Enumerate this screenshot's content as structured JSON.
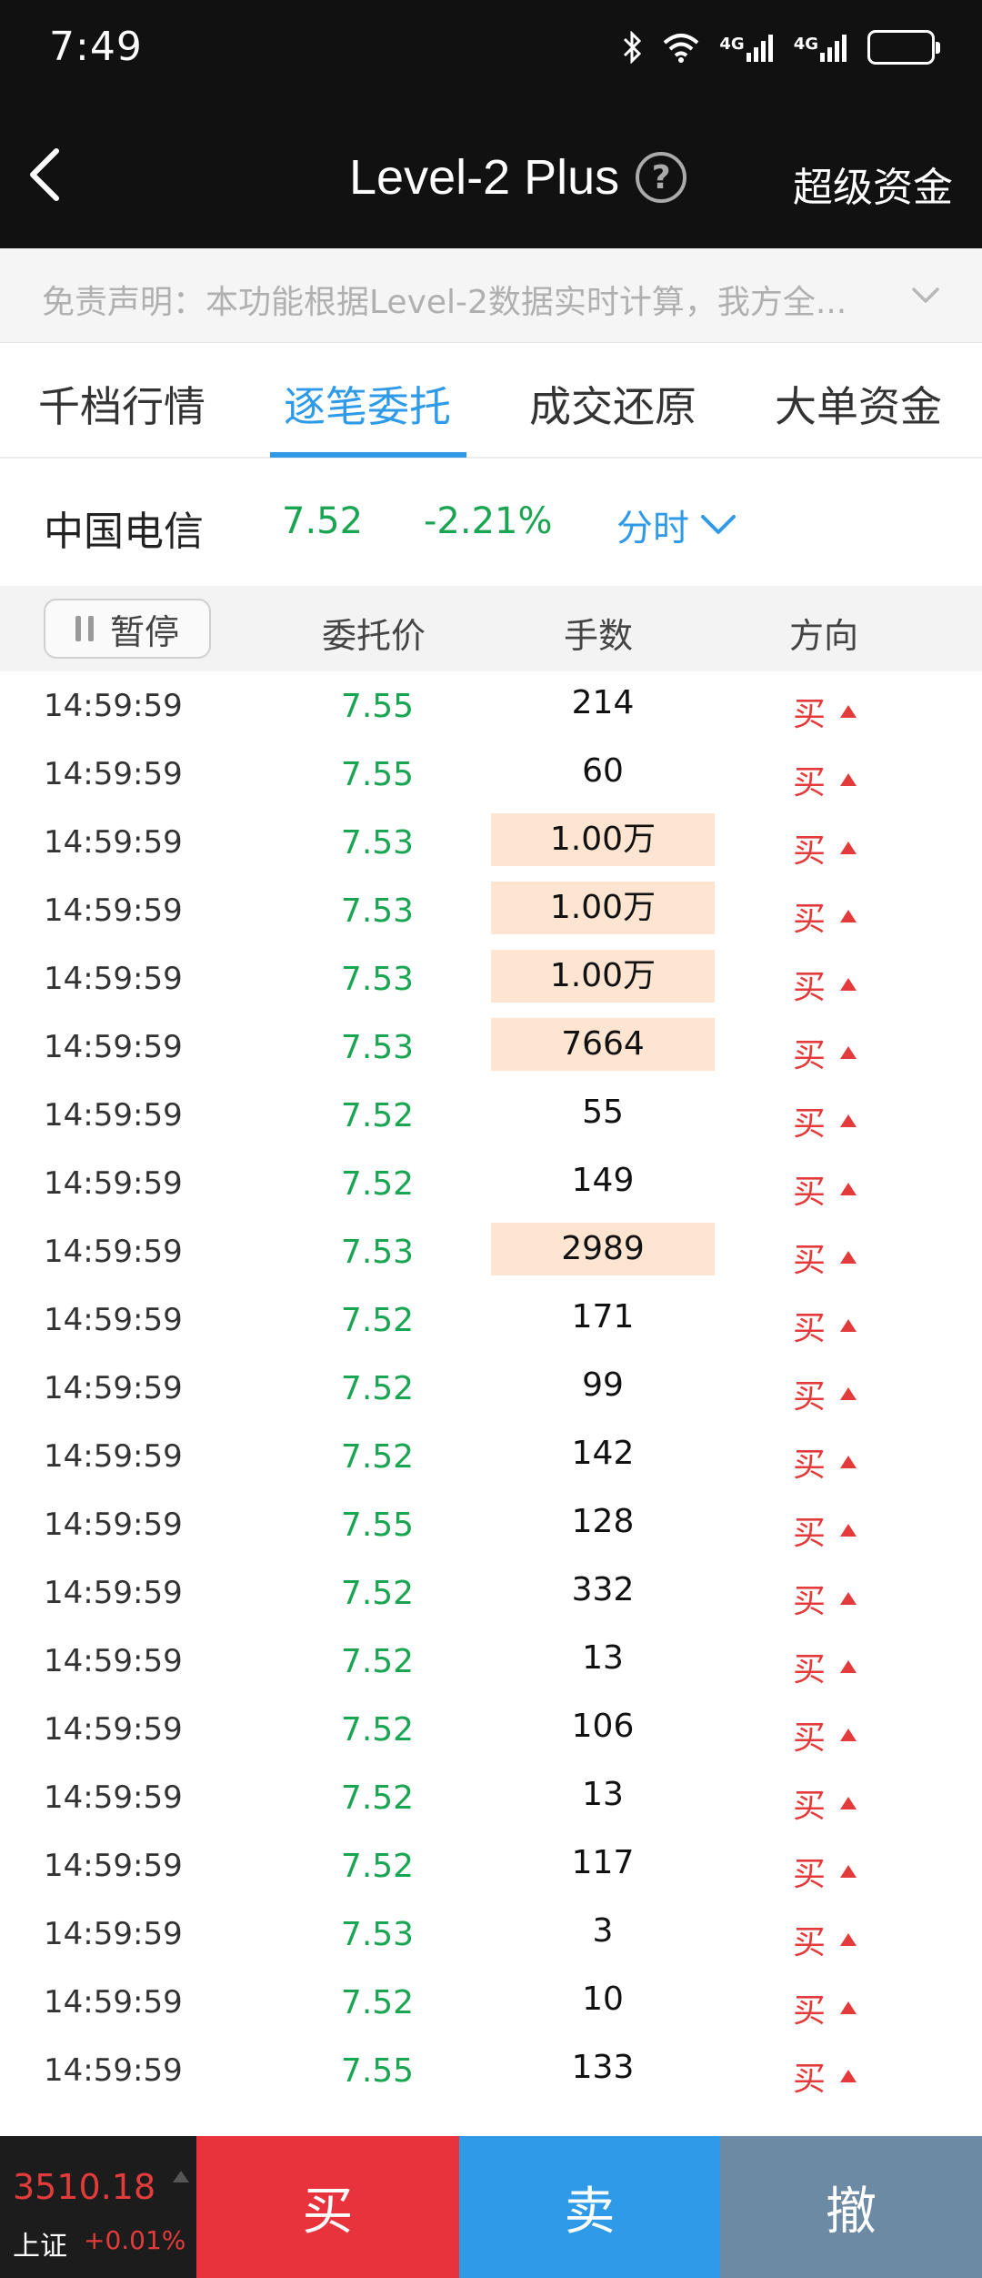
{
  "status_bar": {
    "time": "7:49",
    "sig1": "4G",
    "sig2": "4G"
  },
  "header": {
    "title": "Level-2 Plus",
    "help": "?",
    "right_link": "超级资金"
  },
  "disclaimer": {
    "text": "免责声明：本功能根据Level-2数据实时计算，我方全..."
  },
  "tabs": [
    {
      "label": "千档行情"
    },
    {
      "label": "逐笔委托"
    },
    {
      "label": "成交还原"
    },
    {
      "label": "大单资金"
    }
  ],
  "active_tab": 1,
  "stock": {
    "name": "中国电信",
    "price": "7.52",
    "change": "-2.21%",
    "mode": "分时"
  },
  "columns": {
    "pause": "暂停",
    "price": "委托价",
    "volume": "手数",
    "direction": "方向"
  },
  "rows": [
    {
      "time": "14:59:59",
      "price": "7.55",
      "volume": "214",
      "dir": "买",
      "highlight": false
    },
    {
      "time": "14:59:59",
      "price": "7.55",
      "volume": "60",
      "dir": "买",
      "highlight": false
    },
    {
      "time": "14:59:59",
      "price": "7.53",
      "volume": "1.00万",
      "dir": "买",
      "highlight": true
    },
    {
      "time": "14:59:59",
      "price": "7.53",
      "volume": "1.00万",
      "dir": "买",
      "highlight": true
    },
    {
      "time": "14:59:59",
      "price": "7.53",
      "volume": "1.00万",
      "dir": "买",
      "highlight": true
    },
    {
      "time": "14:59:59",
      "price": "7.53",
      "volume": "7664",
      "dir": "买",
      "highlight": true
    },
    {
      "time": "14:59:59",
      "price": "7.52",
      "volume": "55",
      "dir": "买",
      "highlight": false
    },
    {
      "time": "14:59:59",
      "price": "7.52",
      "volume": "149",
      "dir": "买",
      "highlight": false
    },
    {
      "time": "14:59:59",
      "price": "7.53",
      "volume": "2989",
      "dir": "买",
      "highlight": true
    },
    {
      "time": "14:59:59",
      "price": "7.52",
      "volume": "171",
      "dir": "买",
      "highlight": false
    },
    {
      "time": "14:59:59",
      "price": "7.52",
      "volume": "99",
      "dir": "买",
      "highlight": false
    },
    {
      "time": "14:59:59",
      "price": "7.52",
      "volume": "142",
      "dir": "买",
      "highlight": false
    },
    {
      "time": "14:59:59",
      "price": "7.55",
      "volume": "128",
      "dir": "买",
      "highlight": false
    },
    {
      "time": "14:59:59",
      "price": "7.52",
      "volume": "332",
      "dir": "买",
      "highlight": false
    },
    {
      "time": "14:59:59",
      "price": "7.52",
      "volume": "13",
      "dir": "买",
      "highlight": false
    },
    {
      "time": "14:59:59",
      "price": "7.52",
      "volume": "106",
      "dir": "买",
      "highlight": false
    },
    {
      "time": "14:59:59",
      "price": "7.52",
      "volume": "13",
      "dir": "买",
      "highlight": false
    },
    {
      "time": "14:59:59",
      "price": "7.52",
      "volume": "117",
      "dir": "买",
      "highlight": false
    },
    {
      "time": "14:59:59",
      "price": "7.53",
      "volume": "3",
      "dir": "买",
      "highlight": false
    },
    {
      "time": "14:59:59",
      "price": "7.52",
      "volume": "10",
      "dir": "买",
      "highlight": false
    },
    {
      "time": "14:59:59",
      "price": "7.55",
      "volume": "133",
      "dir": "买",
      "highlight": false
    }
  ],
  "bottom": {
    "index_value": "3510.18",
    "index_name": "上证",
    "index_change": "+0.01%",
    "buy": "买",
    "sell": "卖",
    "cancel": "撤"
  },
  "colors": {
    "up": "#e33b3b",
    "down": "#1aa552",
    "accent": "#2f9be8",
    "highlight": "#fde5d2"
  }
}
